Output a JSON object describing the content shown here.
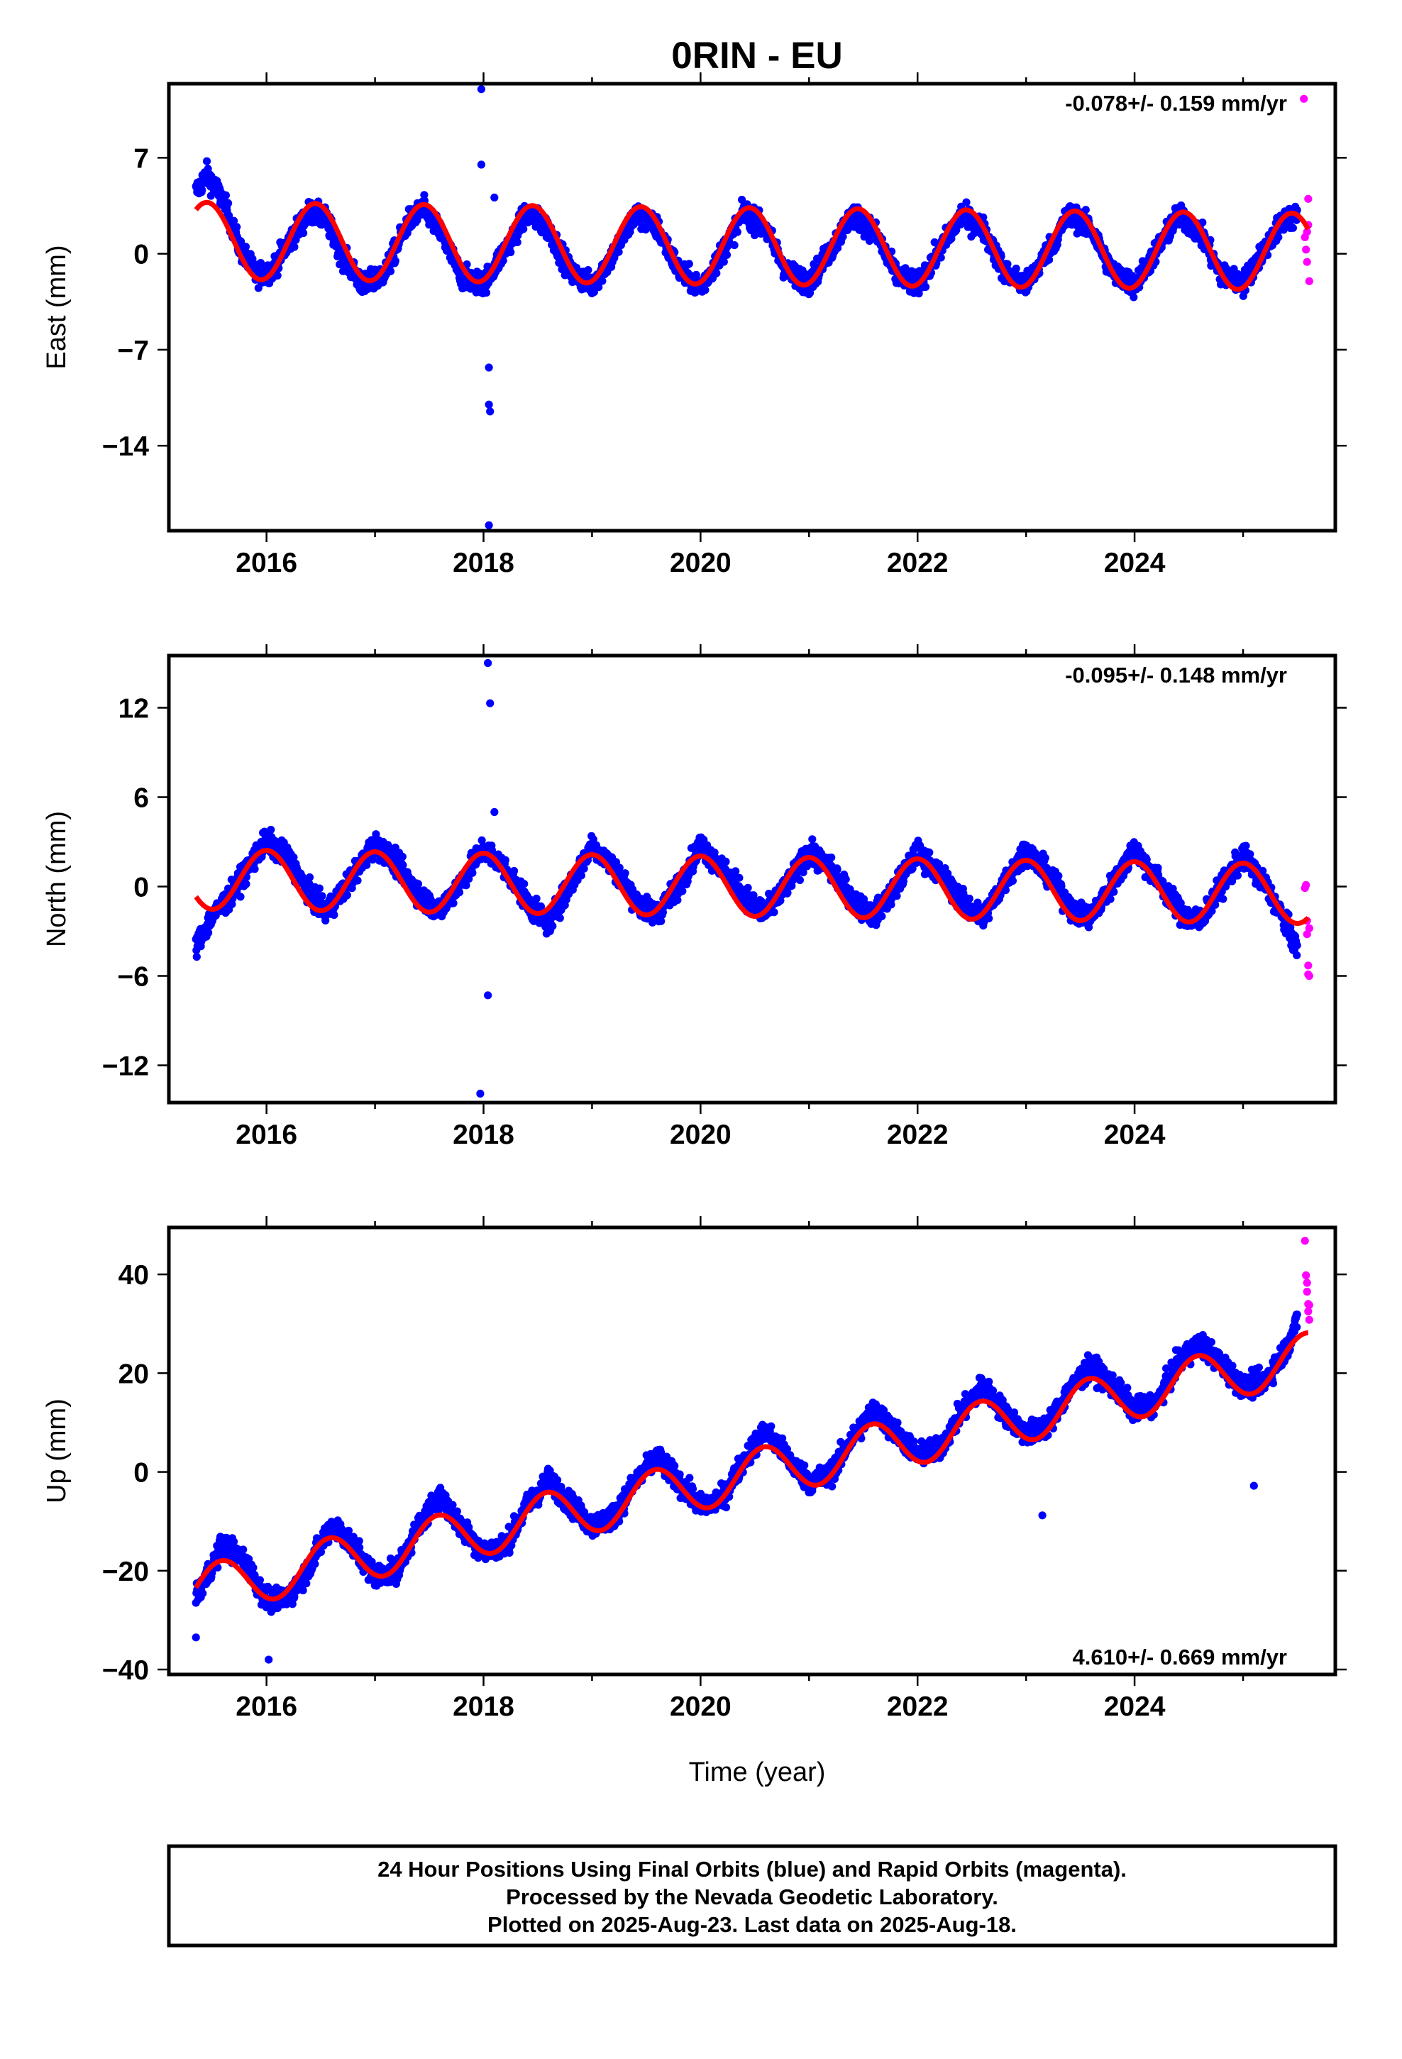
{
  "title": "0RIN - EU",
  "colors": {
    "final": "#0000ff",
    "rapid": "#ff00ff",
    "model": "#ff0000"
  },
  "panel_labels": {
    "east": {
      "ylabel": "East (mm)",
      "rate": "-0.078+/- 0.159 mm/yr"
    },
    "north": {
      "ylabel": "North (mm)",
      "rate": "-0.095+/- 0.148 mm/yr"
    },
    "up": {
      "ylabel": "Up (mm)",
      "rate": "4.610+/- 0.669 mm/yr"
    }
  },
  "xlabel": "Time (year)",
  "footer": {
    "line1": "24 Hour Positions Using Final Orbits (blue) and Rapid Orbits (magenta).",
    "line2": "Processed by the Nevada Geodetic Laboratory.",
    "line3": "Plotted on 2025-Aug-23. Last data on 2025-Aug-18."
  },
  "chart_data": [
    {
      "type": "scatter",
      "name": "east",
      "ylabel": "East (mm)",
      "xlim": [
        2015.1,
        2025.85
      ],
      "ylim": [
        -20.2,
        12.4
      ],
      "xticks": [
        2016,
        2018,
        2020,
        2022,
        2024
      ],
      "yticks": [
        7,
        0,
        -7,
        -14
      ],
      "rate_text": "-0.078+/- 0.159 mm/yr",
      "model": {
        "offset": 0.55,
        "rate": -0.078,
        "amplitude": 2.8,
        "peak_phase": 0.45,
        "ref_epoch": 2020.5,
        "x_range": [
          2015.35,
          2025.6
        ]
      },
      "final_samples": [
        [
          2015.35,
          4.5
        ],
        [
          2015.45,
          5.8
        ],
        [
          2015.6,
          3.9
        ],
        [
          2015.75,
          0.5
        ],
        [
          2015.9,
          -1.5
        ],
        [
          2016.05,
          -1.2
        ],
        [
          2016.2,
          0.8
        ],
        [
          2016.4,
          3.1
        ],
        [
          2016.55,
          2.5
        ],
        [
          2016.7,
          -0.2
        ],
        [
          2016.9,
          -2.4
        ],
        [
          2017.1,
          -1.3
        ],
        [
          2017.3,
          2.3
        ],
        [
          2017.45,
          3.3
        ],
        [
          2017.6,
          1.6
        ],
        [
          2017.8,
          -1.7
        ],
        [
          2018.0,
          -2.2
        ],
        [
          2018.2,
          0.3
        ],
        [
          2018.4,
          3.0
        ],
        [
          2018.6,
          1.8
        ],
        [
          2018.8,
          -1.3
        ],
        [
          2019.0,
          -2.3
        ],
        [
          2019.2,
          0.0
        ],
        [
          2019.4,
          2.9
        ],
        [
          2019.6,
          1.9
        ],
        [
          2019.8,
          -1.2
        ],
        [
          2020.0,
          -2.5
        ],
        [
          2020.2,
          0.1
        ],
        [
          2020.4,
          3.0
        ],
        [
          2020.6,
          1.8
        ],
        [
          2020.8,
          -1.4
        ],
        [
          2021.0,
          -2.1
        ],
        [
          2021.2,
          0.3
        ],
        [
          2021.4,
          2.9
        ],
        [
          2021.6,
          1.7
        ],
        [
          2021.8,
          -1.5
        ],
        [
          2022.0,
          -2.3
        ],
        [
          2022.2,
          0.2
        ],
        [
          2022.4,
          2.8
        ],
        [
          2022.6,
          1.9
        ],
        [
          2022.8,
          -1.3
        ],
        [
          2023.0,
          -2.3
        ],
        [
          2023.2,
          0.2
        ],
        [
          2023.4,
          2.9
        ],
        [
          2023.6,
          1.8
        ],
        [
          2023.8,
          -1.4
        ],
        [
          2024.0,
          -2.3
        ],
        [
          2024.2,
          0.2
        ],
        [
          2024.4,
          2.8
        ],
        [
          2024.6,
          1.6
        ],
        [
          2024.8,
          -1.6
        ],
        [
          2025.0,
          -2.2
        ],
        [
          2025.2,
          0.4
        ],
        [
          2025.4,
          2.7
        ],
        [
          2025.5,
          2.6
        ]
      ],
      "final_outliers": [
        [
          2017.98,
          12.0
        ],
        [
          2017.98,
          6.5
        ],
        [
          2018.05,
          -8.3
        ],
        [
          2018.05,
          -11.0
        ],
        [
          2018.06,
          -11.5
        ],
        [
          2018.05,
          -19.8
        ],
        [
          2018.1,
          4.1
        ]
      ],
      "rapid_samples": [
        [
          2025.57,
          1.2
        ],
        [
          2025.58,
          0.3
        ],
        [
          2025.59,
          -0.6
        ],
        [
          2025.6,
          2.1
        ],
        [
          2025.6,
          4.0
        ],
        [
          2025.61,
          -2.0
        ],
        [
          2025.56,
          11.3
        ],
        [
          2025.59,
          1.6
        ]
      ]
    },
    {
      "type": "scatter",
      "name": "north",
      "ylabel": "North (mm)",
      "xlim": [
        2015.1,
        2025.85
      ],
      "ylim": [
        -14.5,
        15.5
      ],
      "xticks": [
        2016,
        2018,
        2020,
        2022,
        2024
      ],
      "yticks": [
        12,
        6,
        0,
        -6,
        -12
      ],
      "rate_text": "-0.095+/- 0.148 mm/yr",
      "model": {
        "offset": 0.0,
        "rate": -0.095,
        "amplitude": 2.0,
        "peak_phase": 0.0,
        "ref_epoch": 2020.5,
        "x_range": [
          2015.35,
          2025.6
        ]
      },
      "final_samples": [
        [
          2015.35,
          -4.0
        ],
        [
          2015.5,
          -2.0
        ],
        [
          2015.65,
          -0.8
        ],
        [
          2015.85,
          1.5
        ],
        [
          2016.0,
          3.1
        ],
        [
          2016.2,
          1.9
        ],
        [
          2016.4,
          -0.5
        ],
        [
          2016.55,
          -1.8
        ],
        [
          2016.75,
          0.2
        ],
        [
          2017.0,
          2.9
        ],
        [
          2017.2,
          1.5
        ],
        [
          2017.45,
          -0.9
        ],
        [
          2017.6,
          -1.6
        ],
        [
          2017.8,
          0.4
        ],
        [
          2018.0,
          2.6
        ],
        [
          2018.2,
          1.2
        ],
        [
          2018.45,
          -1.5
        ],
        [
          2018.6,
          -2.5
        ],
        [
          2018.8,
          0.1
        ],
        [
          2019.0,
          2.8
        ],
        [
          2019.2,
          1.3
        ],
        [
          2019.45,
          -1.4
        ],
        [
          2019.6,
          -1.8
        ],
        [
          2019.8,
          0.1
        ],
        [
          2020.0,
          2.8
        ],
        [
          2020.2,
          1.2
        ],
        [
          2020.45,
          -1.0
        ],
        [
          2020.6,
          -1.8
        ],
        [
          2020.8,
          0.1
        ],
        [
          2021.0,
          2.4
        ],
        [
          2021.2,
          1.1
        ],
        [
          2021.45,
          -1.2
        ],
        [
          2021.6,
          -2.0
        ],
        [
          2021.8,
          0.0
        ],
        [
          2022.0,
          2.3
        ],
        [
          2022.2,
          0.9
        ],
        [
          2022.45,
          -1.3
        ],
        [
          2022.6,
          -2.1
        ],
        [
          2022.8,
          0.3
        ],
        [
          2023.0,
          2.5
        ],
        [
          2023.2,
          0.8
        ],
        [
          2023.45,
          -1.8
        ],
        [
          2023.6,
          -2.0
        ],
        [
          2023.8,
          0.2
        ],
        [
          2024.0,
          2.5
        ],
        [
          2024.2,
          0.6
        ],
        [
          2024.45,
          -2.0
        ],
        [
          2024.6,
          -2.3
        ],
        [
          2024.8,
          0.0
        ],
        [
          2025.0,
          2.1
        ],
        [
          2025.2,
          0.2
        ],
        [
          2025.4,
          -2.6
        ],
        [
          2025.5,
          -4.2
        ]
      ],
      "final_outliers": [
        [
          2018.04,
          15.0
        ],
        [
          2018.06,
          12.3
        ],
        [
          2018.04,
          -7.3
        ],
        [
          2017.97,
          -13.9
        ],
        [
          2018.1,
          5.0
        ]
      ],
      "rapid_samples": [
        [
          2025.57,
          -0.1
        ],
        [
          2025.58,
          0.1
        ],
        [
          2025.59,
          -2.3
        ],
        [
          2025.59,
          -3.2
        ],
        [
          2025.6,
          -5.3
        ],
        [
          2025.6,
          -5.9
        ],
        [
          2025.61,
          -2.8
        ],
        [
          2025.61,
          -6.0
        ]
      ]
    },
    {
      "type": "scatter",
      "name": "up",
      "ylabel": "Up (mm)",
      "xlim": [
        2015.1,
        2025.85
      ],
      "ylim": [
        -41.0,
        49.5
      ],
      "xticks": [
        2016,
        2018,
        2020,
        2022,
        2024
      ],
      "yticks": [
        40,
        20,
        0,
        -20,
        -40
      ],
      "rate_text": "4.610+/- 0.669 mm/yr",
      "model": {
        "offset": -0.3,
        "rate": 4.61,
        "amplitude": 5.0,
        "peak_phase": 0.58,
        "ref_epoch": 2020.5,
        "x_range": [
          2015.35,
          2025.6
        ]
      },
      "final_samples": [
        [
          2015.35,
          -25.0
        ],
        [
          2015.5,
          -19.0
        ],
        [
          2015.6,
          -14.5
        ],
        [
          2015.8,
          -18.0
        ],
        [
          2016.0,
          -26.0
        ],
        [
          2016.2,
          -25.5
        ],
        [
          2016.4,
          -19.0
        ],
        [
          2016.6,
          -10.5
        ],
        [
          2016.8,
          -15.0
        ],
        [
          2017.0,
          -21.0
        ],
        [
          2017.2,
          -20.0
        ],
        [
          2017.4,
          -11.0
        ],
        [
          2017.6,
          -4.5
        ],
        [
          2017.8,
          -11.5
        ],
        [
          2018.0,
          -16.0
        ],
        [
          2018.2,
          -15.0
        ],
        [
          2018.4,
          -7.0
        ],
        [
          2018.6,
          -1.5
        ],
        [
          2018.8,
          -6.5
        ],
        [
          2019.0,
          -11.0
        ],
        [
          2019.2,
          -9.0
        ],
        [
          2019.4,
          -2.0
        ],
        [
          2019.6,
          3.0
        ],
        [
          2019.8,
          -2.0
        ],
        [
          2020.0,
          -7.0
        ],
        [
          2020.2,
          -5.5
        ],
        [
          2020.4,
          2.5
        ],
        [
          2020.6,
          8.5
        ],
        [
          2020.8,
          3.0
        ],
        [
          2021.0,
          -2.0
        ],
        [
          2021.2,
          -0.5
        ],
        [
          2021.4,
          7.0
        ],
        [
          2021.6,
          12.5
        ],
        [
          2021.8,
          8.0
        ],
        [
          2022.0,
          3.5
        ],
        [
          2022.2,
          4.5
        ],
        [
          2022.4,
          12.0
        ],
        [
          2022.6,
          17.5
        ],
        [
          2022.8,
          12.0
        ],
        [
          2023.0,
          7.5
        ],
        [
          2023.2,
          9.5
        ],
        [
          2023.4,
          16.5
        ],
        [
          2023.6,
          21.5
        ],
        [
          2023.8,
          17.5
        ],
        [
          2024.0,
          12.5
        ],
        [
          2024.2,
          14.0
        ],
        [
          2024.4,
          22.0
        ],
        [
          2024.6,
          26.0
        ],
        [
          2024.8,
          22.0
        ],
        [
          2025.0,
          17.0
        ],
        [
          2025.2,
          18.5
        ],
        [
          2025.4,
          25.0
        ],
        [
          2025.5,
          30.5
        ]
      ],
      "final_outliers": [
        [
          2025.1,
          -2.8
        ],
        [
          2023.15,
          -8.8
        ],
        [
          2016.02,
          -38.0
        ],
        [
          2015.35,
          -33.5
        ]
      ],
      "rapid_samples": [
        [
          2025.57,
          46.8
        ],
        [
          2025.58,
          39.8
        ],
        [
          2025.59,
          38.3
        ],
        [
          2025.59,
          36.5
        ],
        [
          2025.6,
          34.0
        ],
        [
          2025.6,
          32.5
        ],
        [
          2025.61,
          30.8
        ],
        [
          2025.61,
          33.8
        ]
      ]
    }
  ]
}
